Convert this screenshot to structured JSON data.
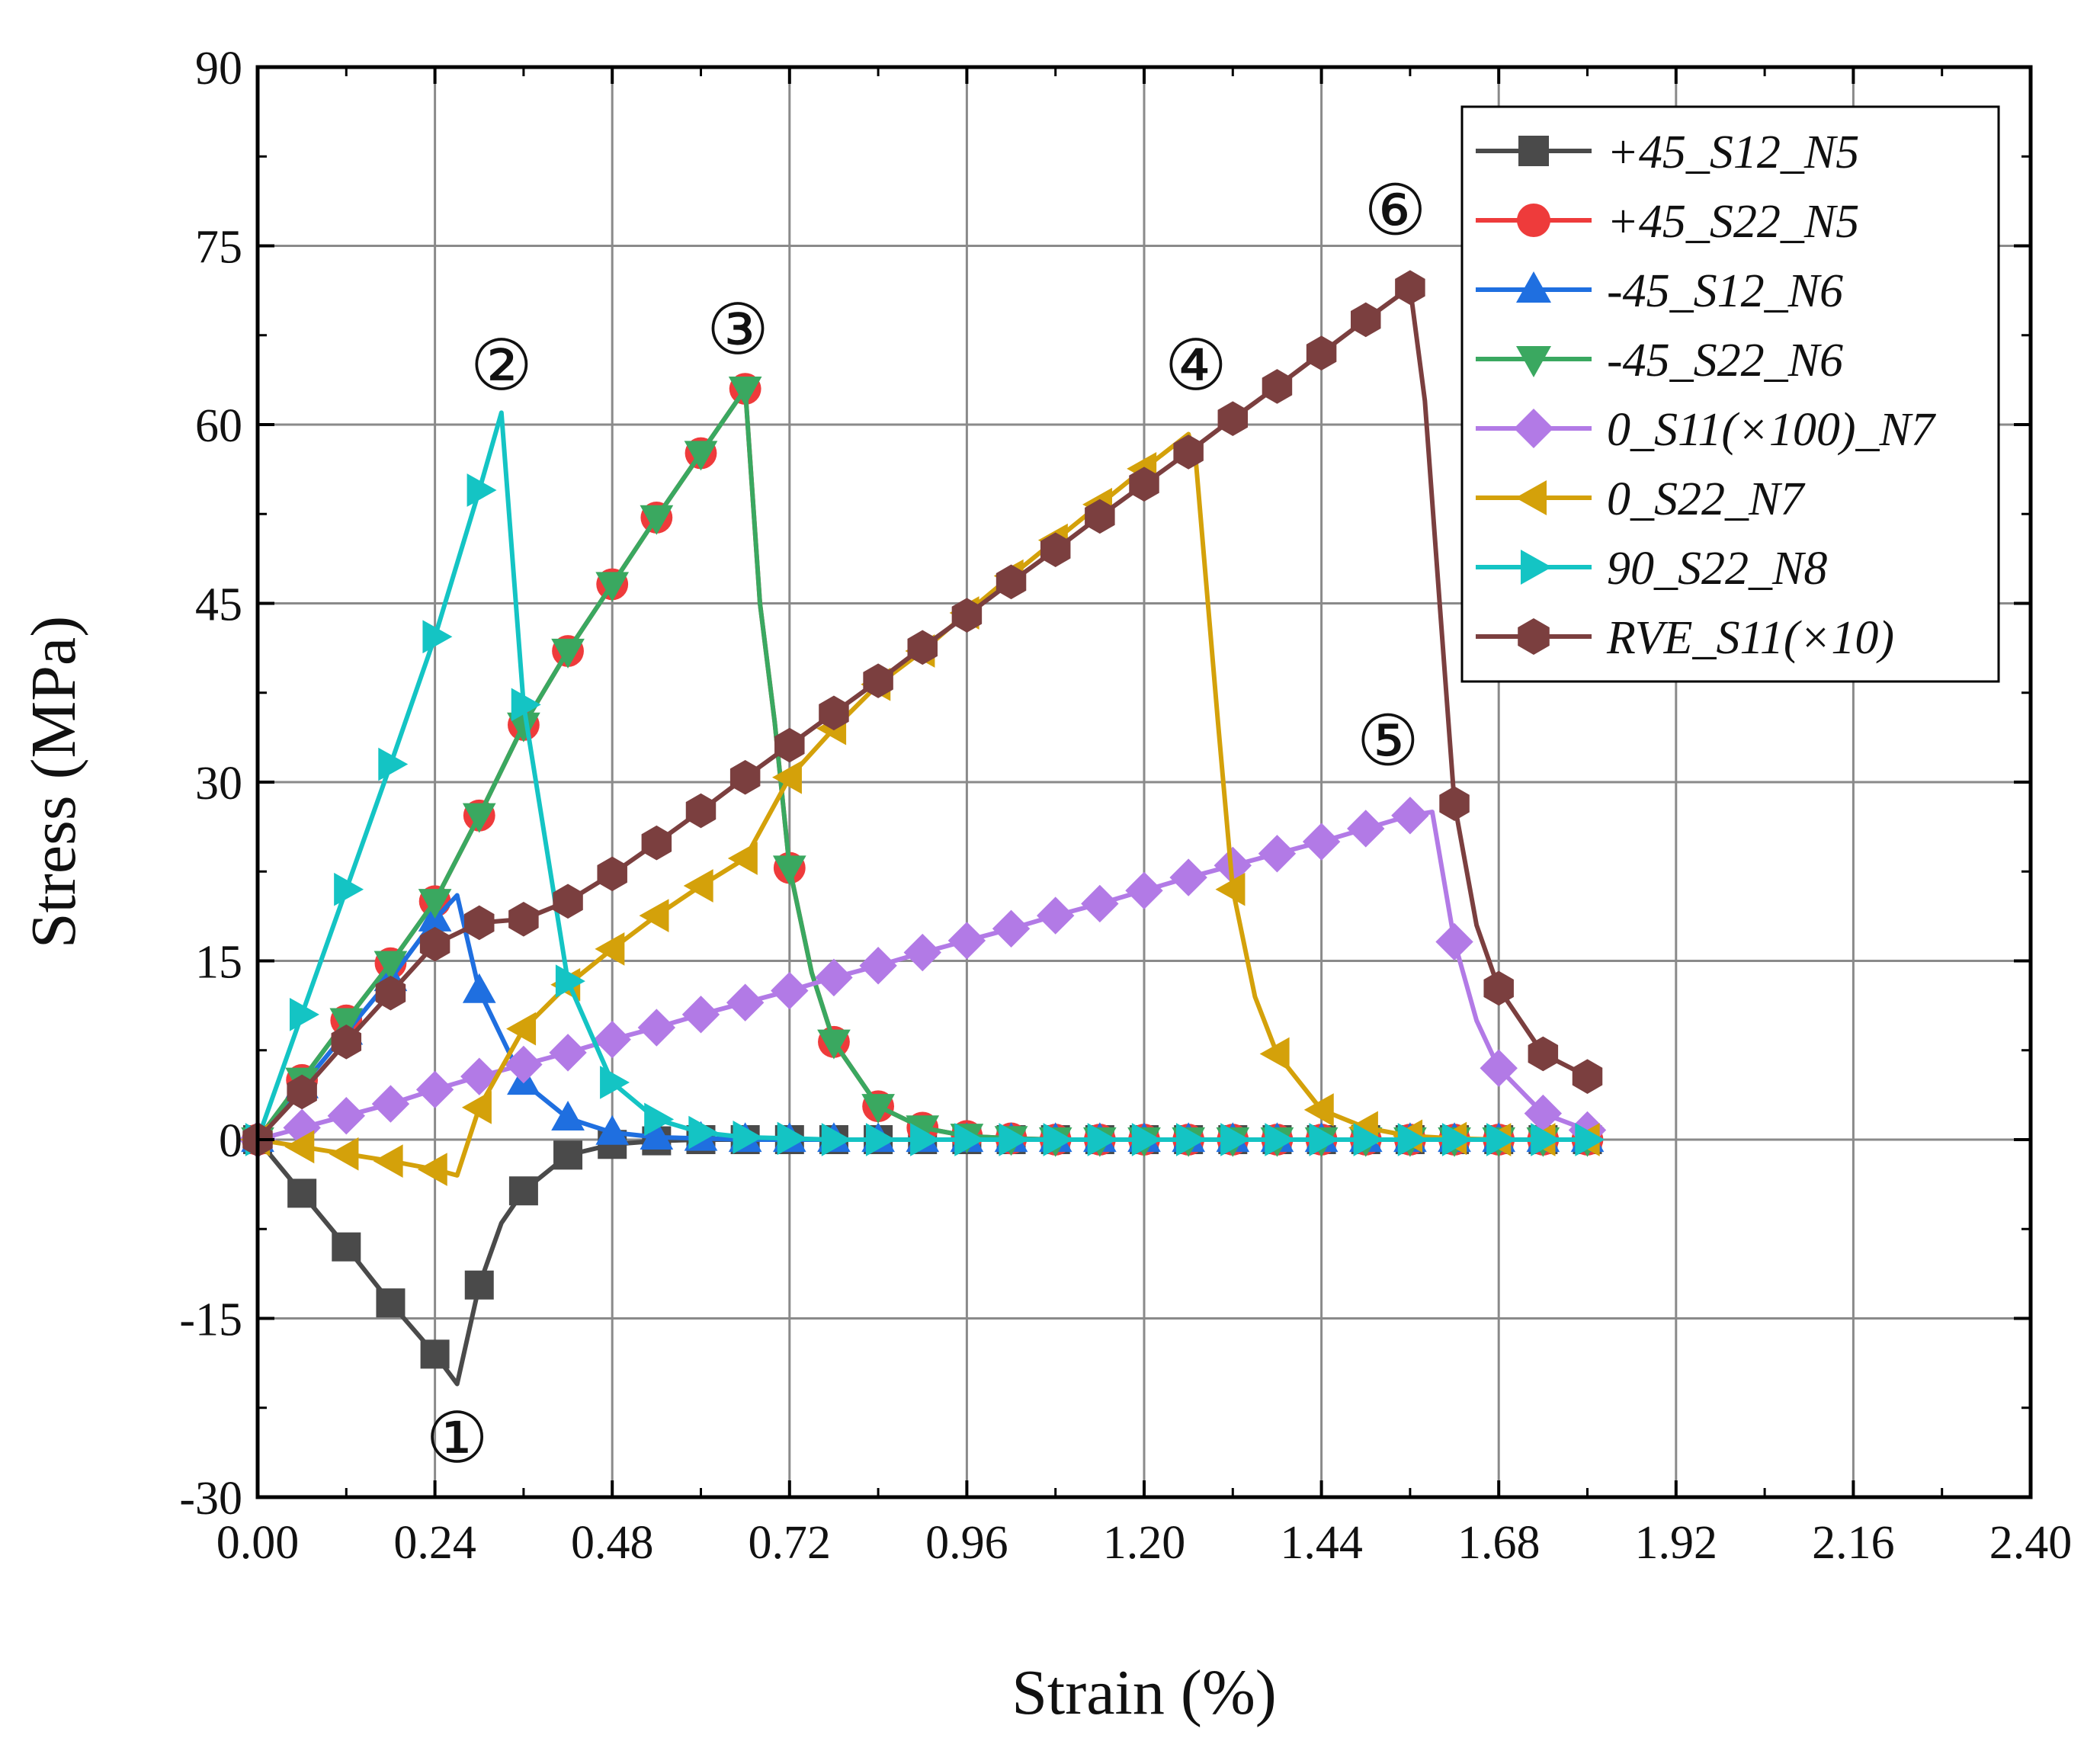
{
  "chart_data": {
    "type": "line",
    "xlabel": "Strain (%)",
    "ylabel": "Stress (MPa)",
    "xlim": [
      0,
      2.4
    ],
    "ylim": [
      -30,
      90
    ],
    "xticks": [
      "0.00",
      "0.24",
      "0.48",
      "0.72",
      "0.96",
      "1.20",
      "1.44",
      "1.68",
      "1.92",
      "2.16",
      "2.40"
    ],
    "yticks": [
      "-30",
      "-15",
      "0",
      "15",
      "30",
      "45",
      "60",
      "75",
      "90"
    ],
    "grid": true,
    "legend_position": "top-right",
    "series": [
      {
        "name": "+45_S12_N5",
        "color": "#4a4a4a",
        "marker": "square",
        "x": [
          0,
          0.06,
          0.12,
          0.18,
          0.24,
          0.27,
          0.3,
          0.33,
          0.36,
          0.42,
          0.48,
          0.54,
          0.6,
          0.66,
          0.72,
          0.78,
          0.84,
          0.9,
          0.96,
          1.02,
          1.08,
          1.14,
          1.2,
          1.26,
          1.32,
          1.38,
          1.44,
          1.5,
          1.56,
          1.62,
          1.68,
          1.74,
          1.8
        ],
        "y": [
          0,
          -4.5,
          -9,
          -13.7,
          -18,
          -20.5,
          -12.2,
          -7,
          -4.3,
          -1.3,
          -0.4,
          -0.1,
          0,
          0,
          0,
          0,
          0,
          0,
          0,
          0,
          0,
          0,
          0,
          0,
          0,
          0,
          0,
          0,
          0,
          0,
          0,
          0,
          0
        ],
        "mx": [
          0,
          0.06,
          0.12,
          0.18,
          0.24,
          0.3,
          0.36,
          0.42,
          0.48,
          0.54,
          0.6,
          0.66,
          0.72,
          0.78,
          0.84,
          0.9,
          0.96,
          1.02,
          1.08,
          1.14,
          1.2,
          1.26,
          1.32,
          1.38,
          1.44,
          1.5,
          1.56,
          1.62,
          1.68,
          1.74,
          1.8
        ]
      },
      {
        "name": "+45_S22_N5",
        "color": "#ee3b3b",
        "marker": "circle",
        "x": [
          0,
          0.06,
          0.12,
          0.18,
          0.24,
          0.3,
          0.36,
          0.42,
          0.48,
          0.54,
          0.6,
          0.66,
          0.68,
          0.7,
          0.72,
          0.75,
          0.78,
          0.84,
          0.9,
          0.96,
          1.02,
          1.08,
          1.14,
          1.2,
          1.26,
          1.32,
          1.38,
          1.44,
          1.5,
          1.56,
          1.62,
          1.68,
          1.74,
          1.8
        ],
        "y": [
          0,
          5,
          10,
          14.8,
          20,
          27.2,
          34.8,
          41,
          46.6,
          52.2,
          57.6,
          63,
          45,
          35,
          22.8,
          14,
          8.2,
          2.8,
          1,
          0.3,
          0.1,
          0,
          0,
          0,
          0,
          0,
          0,
          0,
          0,
          0,
          0,
          0,
          0,
          0
        ],
        "mx": [
          0,
          0.06,
          0.12,
          0.18,
          0.24,
          0.3,
          0.36,
          0.42,
          0.48,
          0.54,
          0.6,
          0.66,
          0.72,
          0.78,
          0.84,
          0.9,
          0.96,
          1.02,
          1.08,
          1.14,
          1.2,
          1.26,
          1.32,
          1.38,
          1.44,
          1.5,
          1.56,
          1.62,
          1.68,
          1.74,
          1.8
        ]
      },
      {
        "name": "-45_S12_N6",
        "color": "#1f6fe0",
        "marker": "triangle-up",
        "x": [
          0,
          0.06,
          0.12,
          0.18,
          0.24,
          0.27,
          0.3,
          0.36,
          0.42,
          0.48,
          0.54,
          0.6,
          0.66,
          0.72,
          0.78,
          0.84,
          0.9,
          0.96,
          1.02,
          1.08,
          1.14,
          1.2,
          1.26,
          1.32,
          1.38,
          1.44,
          1.5,
          1.56,
          1.62,
          1.68,
          1.74,
          1.8
        ],
        "y": [
          0,
          4.5,
          9,
          13.5,
          18.5,
          20.5,
          12.5,
          4.8,
          1.8,
          0.6,
          0.2,
          0.1,
          0,
          0,
          0,
          0,
          0,
          0,
          0,
          0,
          0,
          0,
          0,
          0,
          0,
          0,
          0,
          0,
          0,
          0,
          0,
          0
        ],
        "mx": [
          0,
          0.06,
          0.12,
          0.18,
          0.24,
          0.3,
          0.36,
          0.42,
          0.48,
          0.54,
          0.6,
          0.66,
          0.72,
          0.78,
          0.84,
          0.9,
          0.96,
          1.02,
          1.08,
          1.14,
          1.2,
          1.26,
          1.32,
          1.38,
          1.44,
          1.5,
          1.56,
          1.62,
          1.68,
          1.74,
          1.8
        ]
      },
      {
        "name": "-45_S22_N6",
        "color": "#3aa860",
        "marker": "triangle-down",
        "x": [
          0,
          0.06,
          0.12,
          0.18,
          0.24,
          0.3,
          0.36,
          0.42,
          0.48,
          0.54,
          0.6,
          0.66,
          0.68,
          0.7,
          0.72,
          0.75,
          0.78,
          0.84,
          0.9,
          0.96,
          1.02,
          1.08,
          1.14,
          1.2,
          1.26,
          1.32,
          1.38,
          1.44,
          1.5,
          1.56,
          1.62,
          1.68,
          1.74,
          1.8
        ],
        "y": [
          0,
          5,
          10,
          14.8,
          20,
          27.2,
          34.8,
          41,
          46.6,
          52.2,
          57.6,
          63,
          45,
          35,
          22.8,
          14,
          8.2,
          2.8,
          1,
          0.3,
          0.1,
          0,
          0,
          0,
          0,
          0,
          0,
          0,
          0,
          0,
          0,
          0,
          0,
          0
        ],
        "mx": [
          0,
          0.06,
          0.12,
          0.18,
          0.24,
          0.3,
          0.36,
          0.42,
          0.48,
          0.54,
          0.6,
          0.66,
          0.72,
          0.78,
          0.84,
          0.9,
          0.96,
          1.02,
          1.08,
          1.14,
          1.2,
          1.26,
          1.32,
          1.38,
          1.44,
          1.5,
          1.56,
          1.62,
          1.68,
          1.74,
          1.8
        ]
      },
      {
        "name": "0_S11(×100)_N7",
        "color": "#b27ae6",
        "marker": "diamond",
        "x": [
          0,
          0.06,
          0.12,
          0.18,
          0.24,
          0.3,
          0.36,
          0.42,
          0.48,
          0.54,
          0.6,
          0.66,
          0.72,
          0.78,
          0.84,
          0.9,
          0.96,
          1.02,
          1.08,
          1.14,
          1.2,
          1.26,
          1.32,
          1.38,
          1.44,
          1.5,
          1.56,
          1.59,
          1.62,
          1.65,
          1.68,
          1.74,
          1.8
        ],
        "y": [
          0,
          1,
          2,
          3,
          4.2,
          5.3,
          6.3,
          7.3,
          8.4,
          9.4,
          10.5,
          11.5,
          12.5,
          13.6,
          14.6,
          15.7,
          16.7,
          17.7,
          18.8,
          19.8,
          20.9,
          22,
          23,
          24,
          25,
          26.1,
          27.2,
          27.5,
          16.6,
          10,
          6,
          2.2,
          0.8
        ],
        "mx": [
          0,
          0.06,
          0.12,
          0.18,
          0.24,
          0.3,
          0.36,
          0.42,
          0.48,
          0.54,
          0.6,
          0.66,
          0.72,
          0.78,
          0.84,
          0.9,
          0.96,
          1.02,
          1.08,
          1.14,
          1.2,
          1.26,
          1.32,
          1.38,
          1.44,
          1.5,
          1.56,
          1.62,
          1.68,
          1.74,
          1.8
        ]
      },
      {
        "name": "0_S22_N7",
        "color": "#d4a10a",
        "marker": "triangle-left",
        "x": [
          0,
          0.06,
          0.12,
          0.18,
          0.24,
          0.27,
          0.3,
          0.36,
          0.42,
          0.48,
          0.54,
          0.6,
          0.66,
          0.72,
          0.78,
          0.84,
          0.9,
          0.96,
          1.02,
          1.08,
          1.14,
          1.2,
          1.26,
          1.27,
          1.3,
          1.32,
          1.35,
          1.38,
          1.44,
          1.5,
          1.56,
          1.62,
          1.68,
          1.74,
          1.8
        ],
        "y": [
          0,
          -0.6,
          -1.2,
          -1.8,
          -2.5,
          -3,
          2.7,
          9.3,
          13,
          16,
          18.8,
          21.3,
          23.6,
          30.4,
          34.5,
          38.2,
          41,
          44.2,
          47.3,
          50.3,
          53.3,
          56.3,
          59.2,
          57,
          35,
          21,
          12,
          7.2,
          2.5,
          1,
          0.3,
          0.1,
          0,
          0,
          0
        ],
        "mx": [
          0,
          0.06,
          0.12,
          0.18,
          0.24,
          0.3,
          0.36,
          0.42,
          0.48,
          0.54,
          0.6,
          0.66,
          0.72,
          0.78,
          0.84,
          0.9,
          0.96,
          1.02,
          1.08,
          1.14,
          1.2,
          1.32,
          1.38,
          1.44,
          1.5,
          1.56,
          1.62,
          1.68,
          1.74,
          1.8
        ]
      },
      {
        "name": "90_S22_N8",
        "color": "#14c4c4",
        "marker": "triangle-right",
        "x": [
          0,
          0.06,
          0.12,
          0.18,
          0.24,
          0.3,
          0.33,
          0.36,
          0.42,
          0.48,
          0.54,
          0.6,
          0.66,
          0.72,
          0.78,
          0.84,
          0.9,
          0.96,
          1.02,
          1.08,
          1.14,
          1.2,
          1.26,
          1.32,
          1.38,
          1.44,
          1.5,
          1.56,
          1.62,
          1.68,
          1.74,
          1.8
        ],
        "y": [
          0,
          10.5,
          21,
          31.5,
          42.2,
          54.5,
          61,
          36.5,
          13.3,
          4.8,
          1.7,
          0.6,
          0.2,
          0.1,
          0,
          0,
          0,
          0,
          0,
          0,
          0,
          0,
          0,
          0,
          0,
          0,
          0,
          0,
          0,
          0,
          0,
          0
        ],
        "mx": [
          0,
          0.06,
          0.12,
          0.18,
          0.24,
          0.3,
          0.36,
          0.42,
          0.48,
          0.54,
          0.6,
          0.66,
          0.72,
          0.78,
          0.84,
          0.9,
          0.96,
          1.02,
          1.08,
          1.14,
          1.2,
          1.26,
          1.32,
          1.38,
          1.44,
          1.5,
          1.56,
          1.62,
          1.68,
          1.74,
          1.8
        ]
      },
      {
        "name": "RVE_S11(×10)",
        "color": "#7b3f3f",
        "marker": "hexagon",
        "x": [
          0,
          0.06,
          0.12,
          0.18,
          0.24,
          0.3,
          0.36,
          0.42,
          0.48,
          0.54,
          0.6,
          0.66,
          0.72,
          0.78,
          0.84,
          0.9,
          0.96,
          1.02,
          1.08,
          1.14,
          1.2,
          1.26,
          1.32,
          1.38,
          1.44,
          1.5,
          1.56,
          1.58,
          1.6,
          1.62,
          1.65,
          1.68,
          1.74,
          1.8
        ],
        "y": [
          0,
          4,
          8.2,
          12.3,
          16.4,
          18.2,
          18.5,
          20,
          22.3,
          24.9,
          27.6,
          30.4,
          33.1,
          35.8,
          38.5,
          41.3,
          44,
          46.8,
          49.5,
          52.3,
          55,
          57.7,
          60.5,
          63.2,
          66,
          68.8,
          71.5,
          62,
          45,
          28.2,
          18,
          12.7,
          7.2,
          5.3
        ],
        "mx": [
          0,
          0.06,
          0.12,
          0.18,
          0.24,
          0.3,
          0.36,
          0.42,
          0.48,
          0.54,
          0.6,
          0.66,
          0.72,
          0.78,
          0.84,
          0.9,
          0.96,
          1.02,
          1.08,
          1.14,
          1.2,
          1.26,
          1.32,
          1.38,
          1.44,
          1.5,
          1.56,
          1.62,
          1.68,
          1.74,
          1.8
        ]
      }
    ],
    "annotations": [
      {
        "label": "①",
        "x": 0.27,
        "y": -25
      },
      {
        "label": "②",
        "x": 0.33,
        "y": 65
      },
      {
        "label": "③",
        "x": 0.65,
        "y": 68
      },
      {
        "label": "④",
        "x": 1.27,
        "y": 65
      },
      {
        "label": "⑤",
        "x": 1.53,
        "y": 33.5
      },
      {
        "label": "⑥",
        "x": 1.54,
        "y": 78
      }
    ]
  }
}
